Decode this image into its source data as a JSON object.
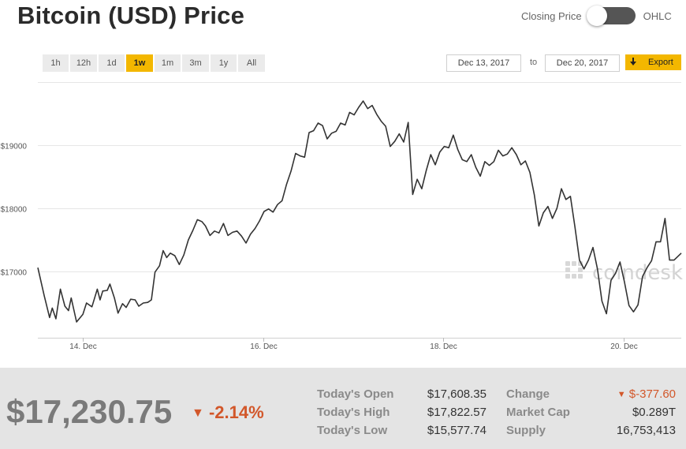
{
  "header": {
    "title": "Bitcoin (USD) Price"
  },
  "toggle": {
    "left_label": "Closing Price",
    "right_label": "OHLC"
  },
  "ranges": [
    "1h",
    "12h",
    "1d",
    "1w",
    "1m",
    "3m",
    "1y",
    "All"
  ],
  "active_range": "1w",
  "date_range": {
    "from": "Dec 13, 2017",
    "to_label": "to",
    "to": "Dec 20, 2017"
  },
  "export": {
    "label": "Export",
    "icon": "download-arrow-icon"
  },
  "colors": {
    "accent": "#f3b700",
    "negative": "#d2572a",
    "line": "#333333"
  },
  "footer": {
    "price": "$17,230.75",
    "change_pct": "-2.14%",
    "stats": {
      "open_label": "Today's Open",
      "open_value": "$17,608.35",
      "high_label": "Today's High",
      "high_value": "$17,822.57",
      "low_label": "Today's Low",
      "low_value": "$15,577.74",
      "change_label": "Change",
      "change_value": "$-377.60",
      "mcap_label": "Market Cap",
      "mcap_value": "$0.289T",
      "supply_label": "Supply",
      "supply_value": "16,753,413"
    }
  },
  "chart_data": {
    "type": "line",
    "title": "",
    "xlabel": "",
    "ylabel": "",
    "x_ticks": [
      "14. Dec",
      "16. Dec",
      "18. Dec",
      "20. Dec"
    ],
    "y_ticks": [
      "$17000",
      "$18000",
      "$19000"
    ],
    "y_tick_values": [
      17000,
      18000,
      19000
    ],
    "ylim": [
      15950,
      20050
    ],
    "x_range": [
      13.5,
      20.64
    ],
    "x_tick_values": [
      14,
      16,
      18,
      20
    ],
    "grid": true,
    "watermark": "coindesk",
    "series": [
      {
        "values": [
          [
            13.5,
            17060
          ],
          [
            13.57,
            16620
          ],
          [
            13.63,
            16270
          ],
          [
            13.66,
            16420
          ],
          [
            13.7,
            16250
          ],
          [
            13.75,
            16720
          ],
          [
            13.8,
            16450
          ],
          [
            13.84,
            16380
          ],
          [
            13.87,
            16580
          ],
          [
            13.93,
            16200
          ],
          [
            14.0,
            16320
          ],
          [
            14.04,
            16500
          ],
          [
            14.1,
            16440
          ],
          [
            14.16,
            16720
          ],
          [
            14.19,
            16550
          ],
          [
            14.22,
            16690
          ],
          [
            14.27,
            16700
          ],
          [
            14.3,
            16800
          ],
          [
            14.35,
            16580
          ],
          [
            14.39,
            16340
          ],
          [
            14.44,
            16490
          ],
          [
            14.48,
            16430
          ],
          [
            14.53,
            16560
          ],
          [
            14.58,
            16550
          ],
          [
            14.62,
            16450
          ],
          [
            14.67,
            16500
          ],
          [
            14.72,
            16510
          ],
          [
            14.76,
            16550
          ],
          [
            14.8,
            16990
          ],
          [
            14.85,
            17090
          ],
          [
            14.89,
            17330
          ],
          [
            14.93,
            17220
          ],
          [
            14.97,
            17290
          ],
          [
            15.02,
            17250
          ],
          [
            15.07,
            17110
          ],
          [
            15.12,
            17260
          ],
          [
            15.17,
            17500
          ],
          [
            15.22,
            17650
          ],
          [
            15.27,
            17820
          ],
          [
            15.32,
            17790
          ],
          [
            15.36,
            17720
          ],
          [
            15.41,
            17570
          ],
          [
            15.46,
            17640
          ],
          [
            15.51,
            17610
          ],
          [
            15.56,
            17760
          ],
          [
            15.61,
            17570
          ],
          [
            15.66,
            17620
          ],
          [
            15.71,
            17640
          ],
          [
            15.76,
            17560
          ],
          [
            15.81,
            17450
          ],
          [
            15.86,
            17590
          ],
          [
            15.91,
            17680
          ],
          [
            15.96,
            17800
          ],
          [
            16.01,
            17950
          ],
          [
            16.06,
            17990
          ],
          [
            16.11,
            17940
          ],
          [
            16.16,
            18060
          ],
          [
            16.21,
            18120
          ],
          [
            16.26,
            18380
          ],
          [
            16.31,
            18590
          ],
          [
            16.36,
            18870
          ],
          [
            16.41,
            18830
          ],
          [
            16.46,
            18810
          ],
          [
            16.51,
            19200
          ],
          [
            16.56,
            19230
          ],
          [
            16.61,
            19350
          ],
          [
            16.66,
            19310
          ],
          [
            16.71,
            19100
          ],
          [
            16.76,
            19190
          ],
          [
            16.81,
            19220
          ],
          [
            16.86,
            19350
          ],
          [
            16.91,
            19320
          ],
          [
            16.96,
            19520
          ],
          [
            17.01,
            19480
          ],
          [
            17.06,
            19600
          ],
          [
            17.11,
            19700
          ],
          [
            17.16,
            19580
          ],
          [
            17.21,
            19630
          ],
          [
            17.26,
            19490
          ],
          [
            17.31,
            19380
          ],
          [
            17.36,
            19300
          ],
          [
            17.41,
            18980
          ],
          [
            17.46,
            19060
          ],
          [
            17.51,
            19180
          ],
          [
            17.56,
            19050
          ],
          [
            17.61,
            19360
          ],
          [
            17.66,
            18220
          ],
          [
            17.71,
            18460
          ],
          [
            17.76,
            18310
          ],
          [
            17.81,
            18600
          ],
          [
            17.86,
            18850
          ],
          [
            17.91,
            18690
          ],
          [
            17.96,
            18890
          ],
          [
            18.01,
            18980
          ],
          [
            18.06,
            18960
          ],
          [
            18.11,
            19160
          ],
          [
            18.16,
            18930
          ],
          [
            18.21,
            18770
          ],
          [
            18.26,
            18740
          ],
          [
            18.31,
            18850
          ],
          [
            18.36,
            18650
          ],
          [
            18.41,
            18510
          ],
          [
            18.46,
            18740
          ],
          [
            18.51,
            18680
          ],
          [
            18.56,
            18740
          ],
          [
            18.61,
            18920
          ],
          [
            18.66,
            18830
          ],
          [
            18.71,
            18860
          ],
          [
            18.76,
            18960
          ],
          [
            18.81,
            18850
          ],
          [
            18.86,
            18690
          ],
          [
            18.91,
            18750
          ],
          [
            18.96,
            18570
          ],
          [
            19.01,
            18210
          ],
          [
            19.06,
            17720
          ],
          [
            19.11,
            17930
          ],
          [
            19.16,
            18030
          ],
          [
            19.21,
            17840
          ],
          [
            19.26,
            18000
          ],
          [
            19.31,
            18310
          ],
          [
            19.36,
            18140
          ],
          [
            19.41,
            18190
          ],
          [
            19.46,
            17710
          ],
          [
            19.51,
            17180
          ],
          [
            19.56,
            17040
          ],
          [
            19.61,
            17180
          ],
          [
            19.66,
            17380
          ],
          [
            19.71,
            17040
          ],
          [
            19.76,
            16530
          ],
          [
            19.81,
            16330
          ],
          [
            19.86,
            16860
          ],
          [
            19.91,
            16970
          ],
          [
            19.96,
            17150
          ],
          [
            20.01,
            16830
          ],
          [
            20.06,
            16460
          ],
          [
            20.11,
            16360
          ],
          [
            20.16,
            16470
          ],
          [
            20.21,
            16920
          ],
          [
            20.26,
            17060
          ],
          [
            20.31,
            17170
          ],
          [
            20.36,
            17470
          ],
          [
            20.41,
            17470
          ],
          [
            20.46,
            17840
          ],
          [
            20.51,
            17180
          ],
          [
            20.56,
            17180
          ],
          [
            20.64,
            17290
          ]
        ]
      }
    ]
  }
}
